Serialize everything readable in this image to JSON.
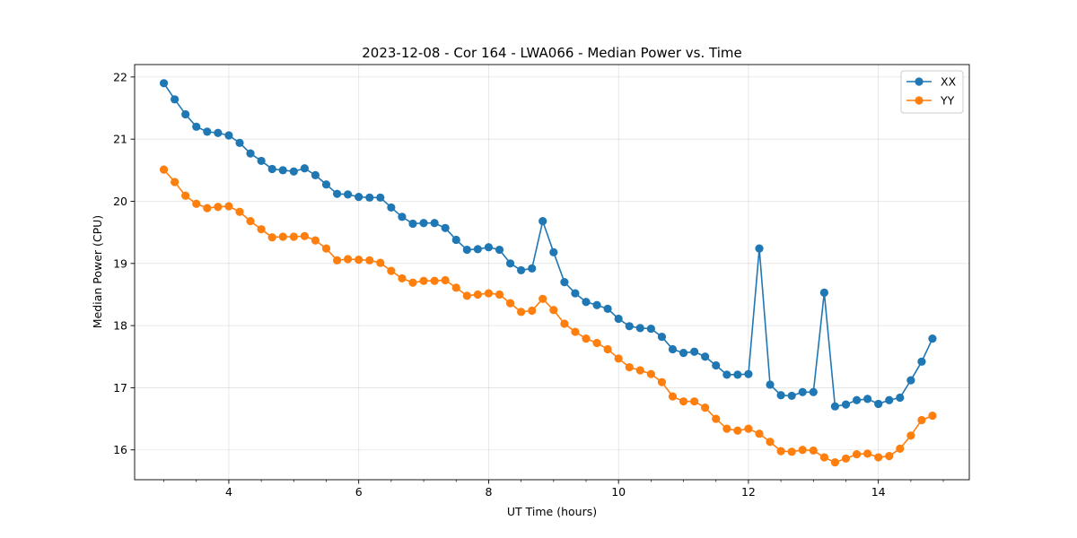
{
  "chart_data": {
    "type": "line",
    "title": "2023-12-08 - Cor 164 - LWA066 - Median Power vs. Time",
    "xlabel": "UT Time (hours)",
    "ylabel": "Median Power (CPU)",
    "xlim": [
      2.55,
      15.4
    ],
    "ylim": [
      15.52,
      22.2
    ],
    "xticks": [
      4,
      6,
      8,
      10,
      12,
      14
    ],
    "xtick_labels": [
      "4",
      "6",
      "8",
      "10",
      "12",
      "14"
    ],
    "yticks": [
      16,
      17,
      18,
      19,
      20,
      21,
      22
    ],
    "ytick_labels": [
      "16",
      "17",
      "18",
      "19",
      "20",
      "21",
      "22"
    ],
    "grid": true,
    "legend_position": "top-right",
    "x": [
      3.0,
      3.167,
      3.333,
      3.5,
      3.667,
      3.833,
      4.0,
      4.167,
      4.333,
      4.5,
      4.667,
      4.833,
      5.0,
      5.167,
      5.333,
      5.5,
      5.667,
      5.833,
      6.0,
      6.167,
      6.333,
      6.5,
      6.667,
      6.833,
      7.0,
      7.167,
      7.333,
      7.5,
      7.667,
      7.833,
      8.0,
      8.167,
      8.333,
      8.5,
      8.667,
      8.833,
      9.0,
      9.167,
      9.333,
      9.5,
      9.667,
      9.833,
      10.0,
      10.167,
      10.333,
      10.5,
      10.667,
      10.833,
      11.0,
      11.167,
      11.333,
      11.5,
      11.667,
      11.833,
      12.0,
      12.167,
      12.333,
      12.5,
      12.667,
      12.833,
      13.0,
      13.167,
      13.333,
      13.5,
      13.667,
      13.833,
      14.0,
      14.167,
      14.333,
      14.5,
      14.667,
      14.833
    ],
    "series": [
      {
        "name": "XX",
        "color": "#1f77b4",
        "values": [
          21.9,
          21.64,
          21.4,
          21.2,
          21.12,
          21.1,
          21.06,
          20.94,
          20.77,
          20.65,
          20.52,
          20.5,
          20.48,
          20.53,
          20.42,
          20.27,
          20.12,
          20.11,
          20.07,
          20.06,
          20.06,
          19.9,
          19.75,
          19.64,
          19.65,
          19.65,
          19.57,
          19.38,
          19.22,
          19.23,
          19.26,
          19.22,
          19.0,
          18.89,
          18.92,
          19.68,
          19.18,
          18.7,
          18.52,
          18.38,
          18.33,
          18.27,
          18.11,
          17.99,
          17.96,
          17.95,
          17.82,
          17.62,
          17.56,
          17.58,
          17.5,
          17.36,
          17.21,
          17.21,
          17.22,
          19.24,
          17.05,
          16.88,
          16.87,
          16.93,
          16.93,
          18.53,
          16.7,
          16.73,
          16.8,
          16.82,
          16.74,
          16.8,
          16.84,
          17.12,
          17.42,
          17.79
        ]
      },
      {
        "name": "YY",
        "color": "#ff7f0e",
        "values": [
          20.51,
          20.31,
          20.09,
          19.96,
          19.89,
          19.91,
          19.92,
          19.83,
          19.68,
          19.55,
          19.42,
          19.43,
          19.43,
          19.44,
          19.37,
          19.24,
          19.05,
          19.07,
          19.06,
          19.05,
          19.01,
          18.88,
          18.76,
          18.69,
          18.72,
          18.72,
          18.73,
          18.61,
          18.48,
          18.5,
          18.52,
          18.5,
          18.36,
          18.22,
          18.24,
          18.43,
          18.25,
          18.03,
          17.9,
          17.79,
          17.72,
          17.62,
          17.47,
          17.33,
          17.28,
          17.22,
          17.09,
          16.86,
          16.78,
          16.78,
          16.68,
          16.5,
          16.34,
          16.31,
          16.34,
          16.26,
          16.13,
          15.98,
          15.97,
          16.0,
          15.99,
          15.88,
          15.8,
          15.86,
          15.93,
          15.94,
          15.88,
          15.9,
          16.02,
          16.23,
          16.48,
          16.55
        ]
      }
    ]
  }
}
